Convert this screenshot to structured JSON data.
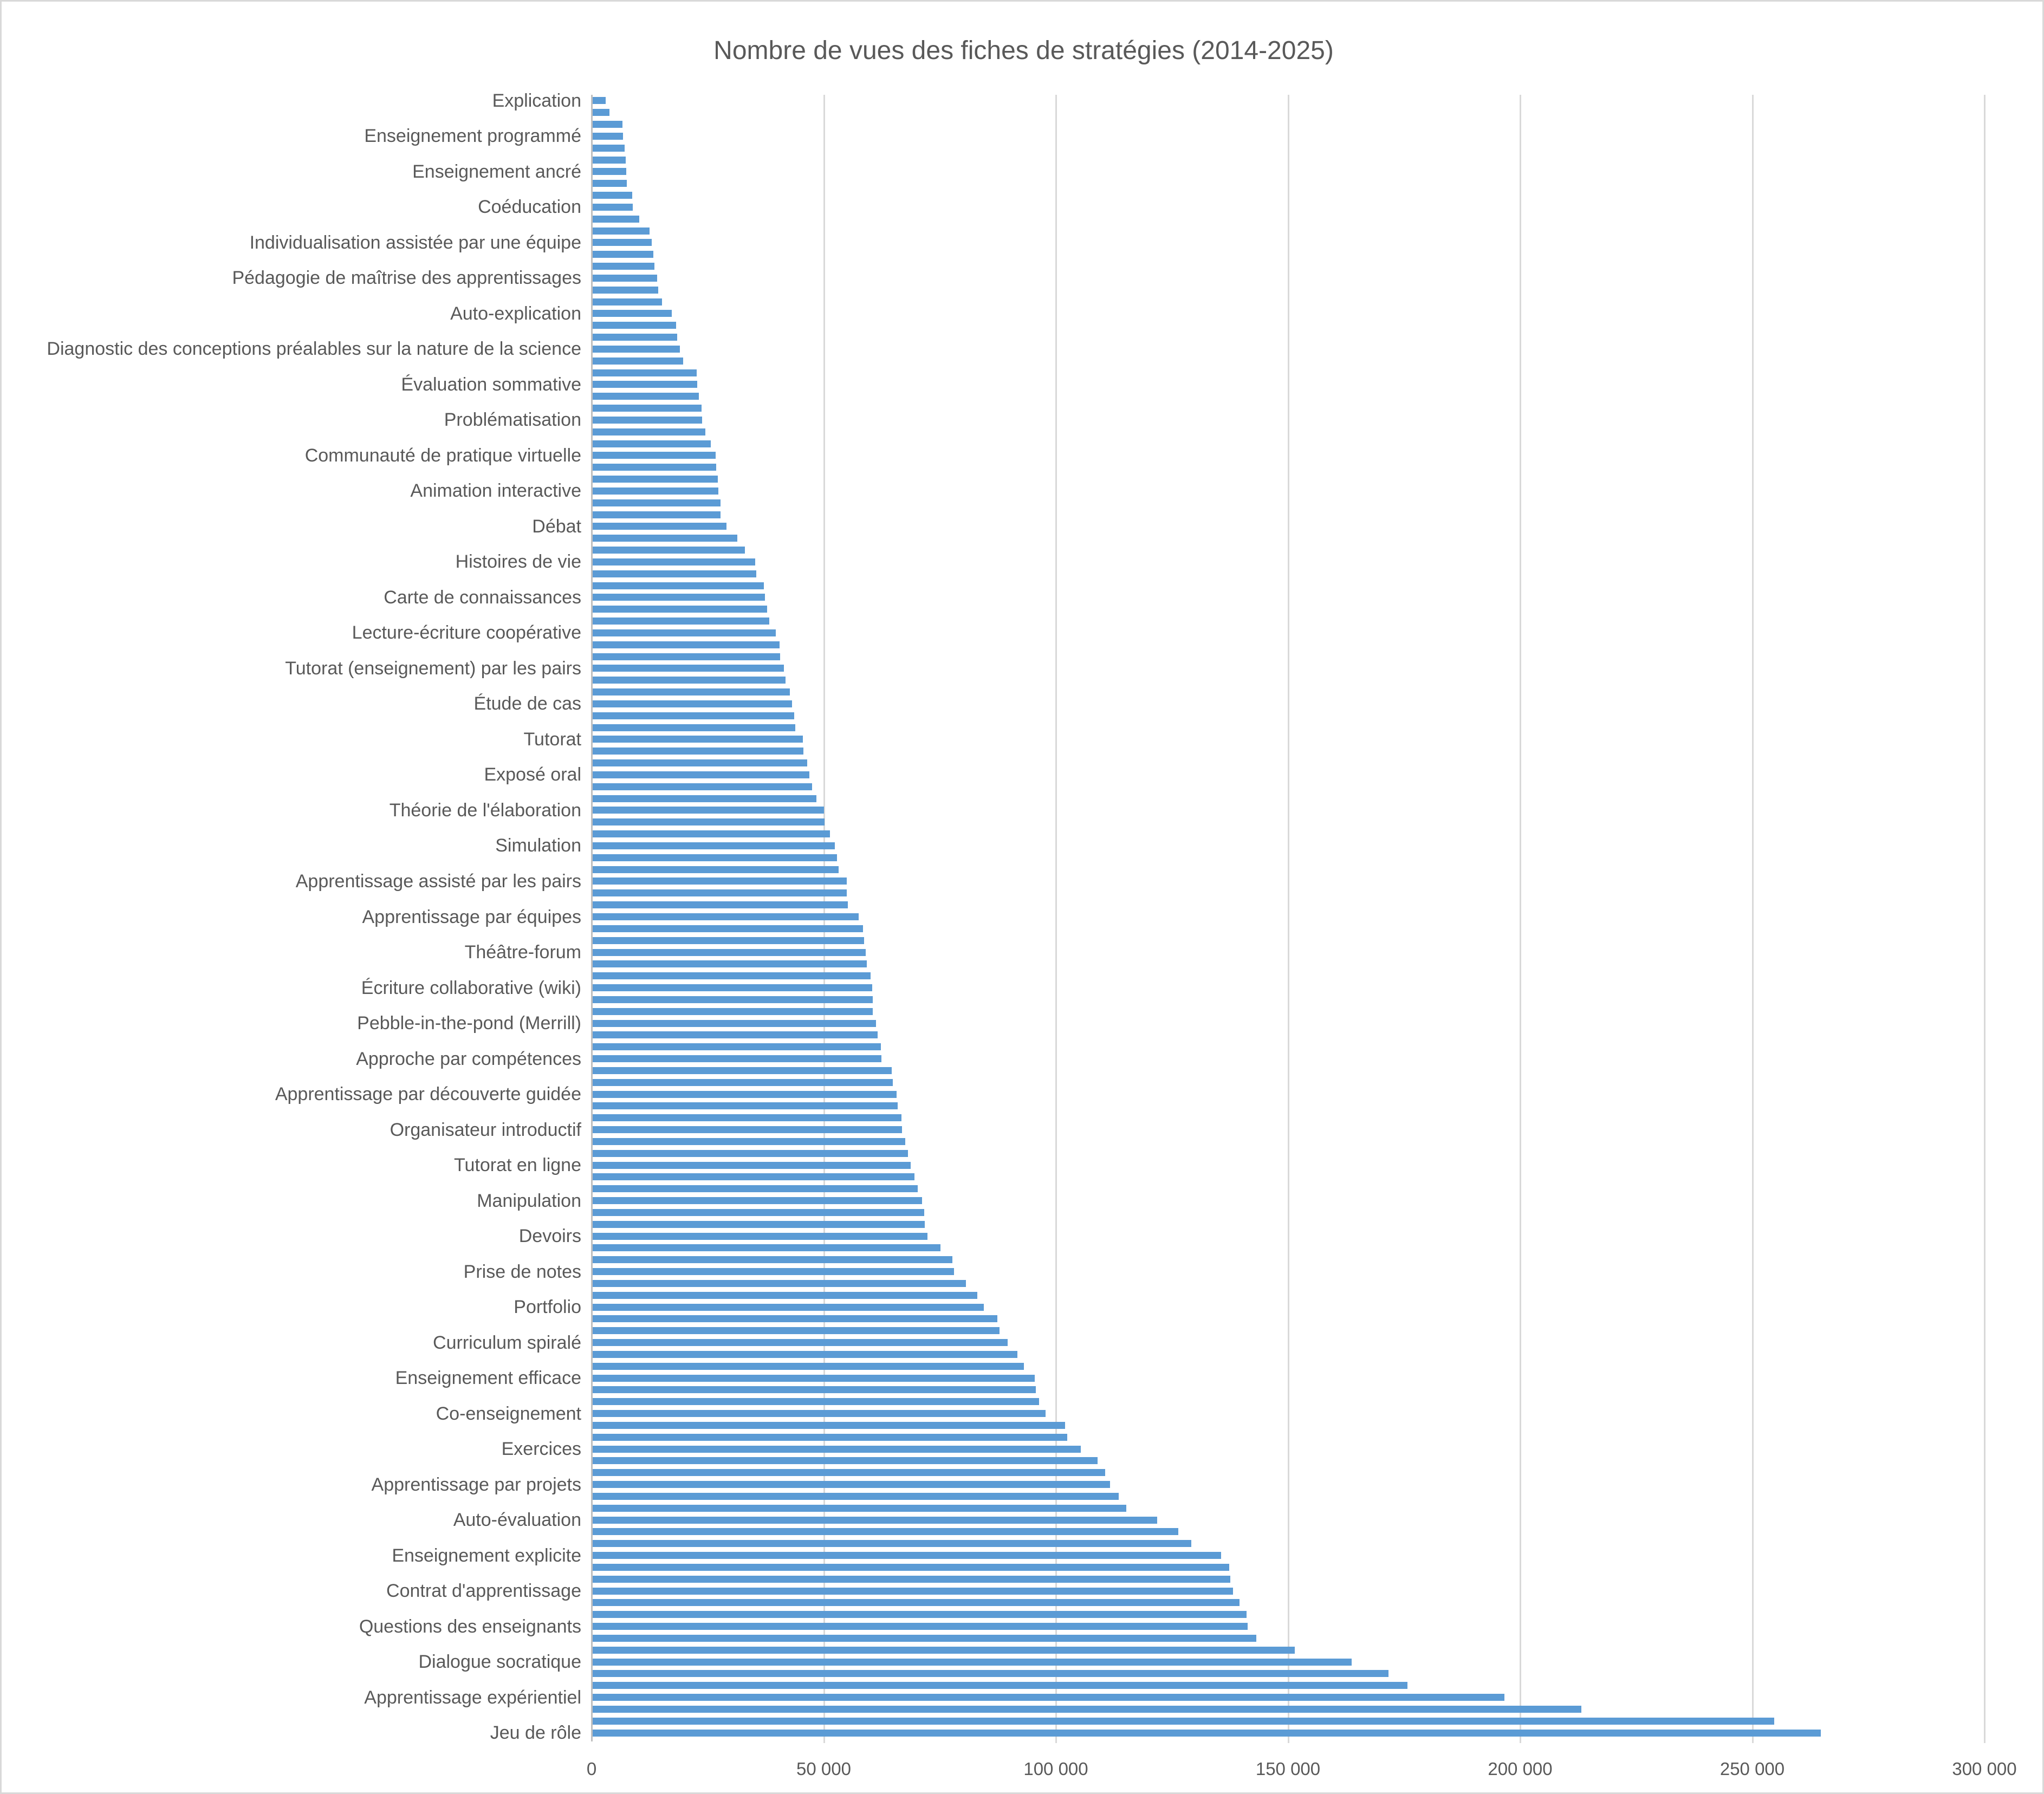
{
  "colors": {
    "bar": "#5b9bd5",
    "gridline": "#d9d9d9",
    "axis_line": "#bfbfbf",
    "text": "#595959",
    "border": "#d9d9d9",
    "background": "#ffffff"
  },
  "chart_data": {
    "type": "bar",
    "orientation": "horizontal",
    "title": "Nombre de vues des fiches de stratégies (2014-2025)",
    "xlabel": "",
    "ylabel": "",
    "xlim": [
      0,
      300000
    ],
    "grid": true,
    "x_tick_labels": [
      "0",
      "50 000",
      "100 000",
      "150 000",
      "200 000",
      "250 000",
      "300 000"
    ],
    "x_tick_values": [
      0,
      50000,
      100000,
      150000,
      200000,
      250000,
      300000
    ],
    "category_label_every_n_bars": 3,
    "bars": [
      {
        "label": "Explication",
        "value": 2900
      },
      {
        "label": "",
        "value": 3700
      },
      {
        "label": "",
        "value": 6500
      },
      {
        "label": "Enseignement programmé",
        "value": 6700
      },
      {
        "label": "",
        "value": 7000
      },
      {
        "label": "",
        "value": 7200
      },
      {
        "label": "Enseignement ancré",
        "value": 7400
      },
      {
        "label": "",
        "value": 7500
      },
      {
        "label": "",
        "value": 8600
      },
      {
        "label": "Coéducation",
        "value": 8700
      },
      {
        "label": "",
        "value": 10100
      },
      {
        "label": "",
        "value": 12400
      },
      {
        "label": "Individualisation assistée par une équipe",
        "value": 12800
      },
      {
        "label": "",
        "value": 13200
      },
      {
        "label": "",
        "value": 13400
      },
      {
        "label": "Pédagogie de maîtrise des apprentissages",
        "value": 14000
      },
      {
        "label": "",
        "value": 14200
      },
      {
        "label": "",
        "value": 15000
      },
      {
        "label": "Auto-explication",
        "value": 17200
      },
      {
        "label": "",
        "value": 18100
      },
      {
        "label": "",
        "value": 18300
      },
      {
        "label": "Diagnostic des conceptions préalables sur la nature de la science",
        "value": 18900
      },
      {
        "label": "",
        "value": 19600
      },
      {
        "label": "",
        "value": 22500
      },
      {
        "label": "Évaluation sommative",
        "value": 22600
      },
      {
        "label": "",
        "value": 23000
      },
      {
        "label": "",
        "value": 23600
      },
      {
        "label": "Problématisation",
        "value": 23700
      },
      {
        "label": "",
        "value": 24400
      },
      {
        "label": "",
        "value": 25600
      },
      {
        "label": "Communauté de pratique virtuelle",
        "value": 26600
      },
      {
        "label": "",
        "value": 26700
      },
      {
        "label": "",
        "value": 27100
      },
      {
        "label": "Animation interactive",
        "value": 27200
      },
      {
        "label": "",
        "value": 27600
      },
      {
        "label": "",
        "value": 27700
      },
      {
        "label": "Débat",
        "value": 28900
      },
      {
        "label": "",
        "value": 31300
      },
      {
        "label": "",
        "value": 32900
      },
      {
        "label": "Histoires de vie",
        "value": 35100
      },
      {
        "label": "",
        "value": 35400
      },
      {
        "label": "",
        "value": 37000
      },
      {
        "label": "Carte de connaissances",
        "value": 37200
      },
      {
        "label": "",
        "value": 37700
      },
      {
        "label": "",
        "value": 38100
      },
      {
        "label": "Lecture-écriture coopérative",
        "value": 39600
      },
      {
        "label": "",
        "value": 40400
      },
      {
        "label": "",
        "value": 40500
      },
      {
        "label": "Tutorat (enseignement) par les pairs",
        "value": 41300
      },
      {
        "label": "",
        "value": 41600
      },
      {
        "label": "",
        "value": 42600
      },
      {
        "label": "Étude de cas",
        "value": 43100
      },
      {
        "label": "",
        "value": 43500
      },
      {
        "label": "",
        "value": 43700
      },
      {
        "label": "Tutorat",
        "value": 45400
      },
      {
        "label": "",
        "value": 45500
      },
      {
        "label": "",
        "value": 46300
      },
      {
        "label": "Exposé oral",
        "value": 46800
      },
      {
        "label": "",
        "value": 47400
      },
      {
        "label": "",
        "value": 48300
      },
      {
        "label": "Théorie de l'élaboration",
        "value": 49900
      },
      {
        "label": "",
        "value": 50000
      },
      {
        "label": "",
        "value": 51200
      },
      {
        "label": "Simulation",
        "value": 52300
      },
      {
        "label": "",
        "value": 52700
      },
      {
        "label": "",
        "value": 53100
      },
      {
        "label": "Apprentissage assisté par les pairs",
        "value": 54800
      },
      {
        "label": "",
        "value": 54900
      },
      {
        "label": "",
        "value": 55100
      },
      {
        "label": "Apprentissage par équipes",
        "value": 57400
      },
      {
        "label": "",
        "value": 58400
      },
      {
        "label": "",
        "value": 58600
      },
      {
        "label": "Théâtre-forum",
        "value": 58900
      },
      {
        "label": "",
        "value": 59200
      },
      {
        "label": "",
        "value": 60000
      },
      {
        "label": "Écriture collaborative (wiki)",
        "value": 60300
      },
      {
        "label": "",
        "value": 60400
      },
      {
        "label": "",
        "value": 60500
      },
      {
        "label": "Pebble-in-the-pond (Merrill)",
        "value": 61200
      },
      {
        "label": "",
        "value": 61500
      },
      {
        "label": "",
        "value": 62200
      },
      {
        "label": "Approche par compétences",
        "value": 62300
      },
      {
        "label": "",
        "value": 64500
      },
      {
        "label": "",
        "value": 64800
      },
      {
        "label": "Apprentissage par découverte guidée",
        "value": 65600
      },
      {
        "label": "",
        "value": 65800
      },
      {
        "label": "",
        "value": 66600
      },
      {
        "label": "Organisateur introductif",
        "value": 66800
      },
      {
        "label": "",
        "value": 67500
      },
      {
        "label": "",
        "value": 68000
      },
      {
        "label": "Tutorat en ligne",
        "value": 68600
      },
      {
        "label": "",
        "value": 69400
      },
      {
        "label": "",
        "value": 70100
      },
      {
        "label": "Manipulation",
        "value": 71100
      },
      {
        "label": "",
        "value": 71500
      },
      {
        "label": "",
        "value": 71600
      },
      {
        "label": "Devoirs",
        "value": 72200
      },
      {
        "label": "",
        "value": 75000
      },
      {
        "label": "",
        "value": 77600
      },
      {
        "label": "Prise de notes",
        "value": 78000
      },
      {
        "label": "",
        "value": 80500
      },
      {
        "label": "",
        "value": 83000
      },
      {
        "label": "Portfolio",
        "value": 84400
      },
      {
        "label": "",
        "value": 87300
      },
      {
        "label": "",
        "value": 87800
      },
      {
        "label": "Curriculum spiralé",
        "value": 89500
      },
      {
        "label": "",
        "value": 91600
      },
      {
        "label": "",
        "value": 93000
      },
      {
        "label": "Enseignement efficace",
        "value": 95300
      },
      {
        "label": "",
        "value": 95600
      },
      {
        "label": "",
        "value": 96300
      },
      {
        "label": "Co-enseignement",
        "value": 97700
      },
      {
        "label": "",
        "value": 101900
      },
      {
        "label": "",
        "value": 102300
      },
      {
        "label": "Exercices",
        "value": 105300
      },
      {
        "label": "",
        "value": 108900
      },
      {
        "label": "",
        "value": 110500
      },
      {
        "label": "Apprentissage par projets",
        "value": 111600
      },
      {
        "label": "",
        "value": 113400
      },
      {
        "label": "",
        "value": 115000
      },
      {
        "label": "Auto-évaluation",
        "value": 121700
      },
      {
        "label": "",
        "value": 126300
      },
      {
        "label": "",
        "value": 129100
      },
      {
        "label": "Enseignement explicite",
        "value": 135500
      },
      {
        "label": "",
        "value": 137200
      },
      {
        "label": "",
        "value": 137500
      },
      {
        "label": "Contrat d'apprentissage",
        "value": 138000
      },
      {
        "label": "",
        "value": 139400
      },
      {
        "label": "",
        "value": 140900
      },
      {
        "label": "Questions des enseignants",
        "value": 141200
      },
      {
        "label": "",
        "value": 143100
      },
      {
        "label": "",
        "value": 151300
      },
      {
        "label": "Dialogue socratique",
        "value": 163600
      },
      {
        "label": "",
        "value": 171500
      },
      {
        "label": "",
        "value": 175600
      },
      {
        "label": "Apprentissage expérientiel",
        "value": 196500
      },
      {
        "label": "",
        "value": 213100
      },
      {
        "label": "",
        "value": 254600
      },
      {
        "label": "Jeu de rôle",
        "value": 264700
      }
    ]
  }
}
